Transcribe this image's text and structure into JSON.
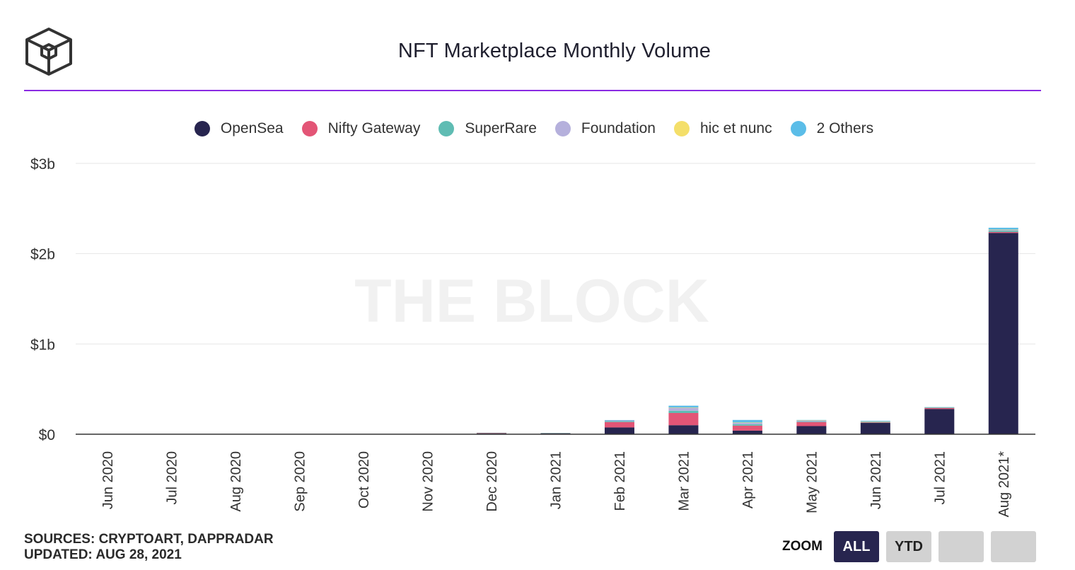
{
  "header": {
    "title": "NFT Marketplace Monthly Volume"
  },
  "footer": {
    "sources": "SOURCES: CRYPTOART, DAPPRADAR",
    "updated": "UPDATED: AUG 28, 2021"
  },
  "zoom": {
    "label": "ZOOM",
    "buttons": [
      "ALL",
      "YTD",
      "",
      ""
    ],
    "active": "ALL"
  },
  "watermark": "THE BLOCK",
  "chart_data": {
    "type": "bar",
    "stacked": true,
    "title": "NFT Marketplace Monthly Volume",
    "categories": [
      "Jun 2020",
      "Jul 2020",
      "Aug 2020",
      "Sep 2020",
      "Oct 2020",
      "Nov 2020",
      "Dec 2020",
      "Jan 2021",
      "Feb 2021",
      "Mar 2021",
      "Apr 2021",
      "May 2021",
      "Jun 2021",
      "Jul 2021",
      "Aug 2021*"
    ],
    "series": [
      {
        "name": "OpenSea",
        "color": "#27254f",
        "values": [
          0.002,
          0.003,
          0.004,
          0.003,
          0.003,
          0.003,
          0.008,
          0.008,
          0.075,
          0.1,
          0.04,
          0.09,
          0.125,
          0.28,
          2.23
        ]
      },
      {
        "name": "Nifty Gateway",
        "color": "#e35576",
        "values": [
          0,
          0,
          0,
          0,
          0,
          0.001,
          0.008,
          0.005,
          0.06,
          0.135,
          0.055,
          0.045,
          0.005,
          0.012,
          0.01
        ]
      },
      {
        "name": "SuperRare",
        "color": "#5fbcb3",
        "values": [
          0,
          0,
          0,
          0,
          0,
          0,
          0.001,
          0.001,
          0.01,
          0.025,
          0.015,
          0.006,
          0.004,
          0.003,
          0.015
        ]
      },
      {
        "name": "Foundation",
        "color": "#b5b0dc",
        "values": [
          0,
          0,
          0,
          0,
          0,
          0,
          0,
          0,
          0.008,
          0.035,
          0.018,
          0.012,
          0.004,
          0.003,
          0.01
        ]
      },
      {
        "name": "hic et nunc",
        "color": "#f4df6a",
        "values": [
          0,
          0,
          0,
          0,
          0,
          0,
          0,
          0,
          0,
          0.001,
          0.002,
          0.001,
          0.002,
          0.001,
          0.002
        ]
      },
      {
        "name": "2 Others",
        "color": "#5bbde8",
        "values": [
          0,
          0,
          0,
          0,
          0,
          0,
          0,
          0,
          0.004,
          0.02,
          0.028,
          0.004,
          0.008,
          0.001,
          0.02
        ]
      }
    ],
    "yticks": [
      "$0",
      "$1b",
      "$2b",
      "$3b"
    ],
    "ylim": [
      0,
      3
    ],
    "xlabel": "",
    "ylabel": "",
    "grid": true,
    "legend": "top"
  }
}
